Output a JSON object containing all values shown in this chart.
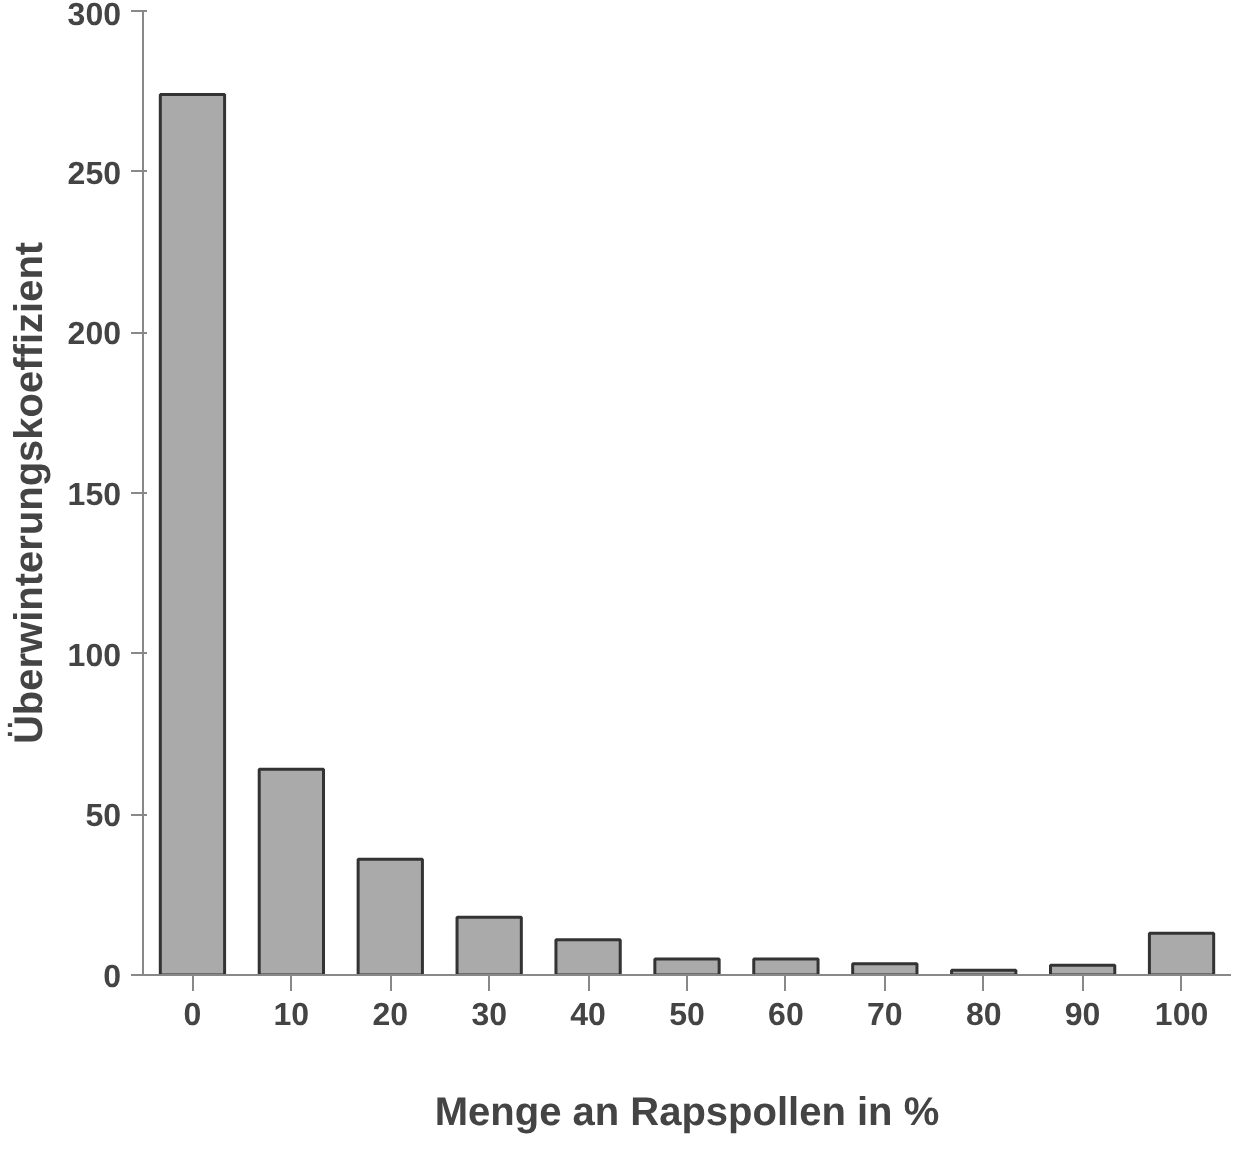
{
  "chart_data": {
    "type": "bar",
    "xlabel": "Menge an Rapspollen in %",
    "ylabel": "Überwinterungskoeffizient",
    "categories": [
      "0",
      "10",
      "20",
      "30",
      "40",
      "50",
      "60",
      "70",
      "80",
      "90",
      "100"
    ],
    "values": [
      274,
      64,
      36,
      18,
      11,
      5,
      5,
      3.5,
      1.5,
      3,
      13
    ],
    "color": "#aaaaaa",
    "ylim": [
      0,
      300
    ],
    "yticks": [
      0,
      50,
      100,
      150,
      200,
      250,
      300
    ],
    "grid": false
  }
}
